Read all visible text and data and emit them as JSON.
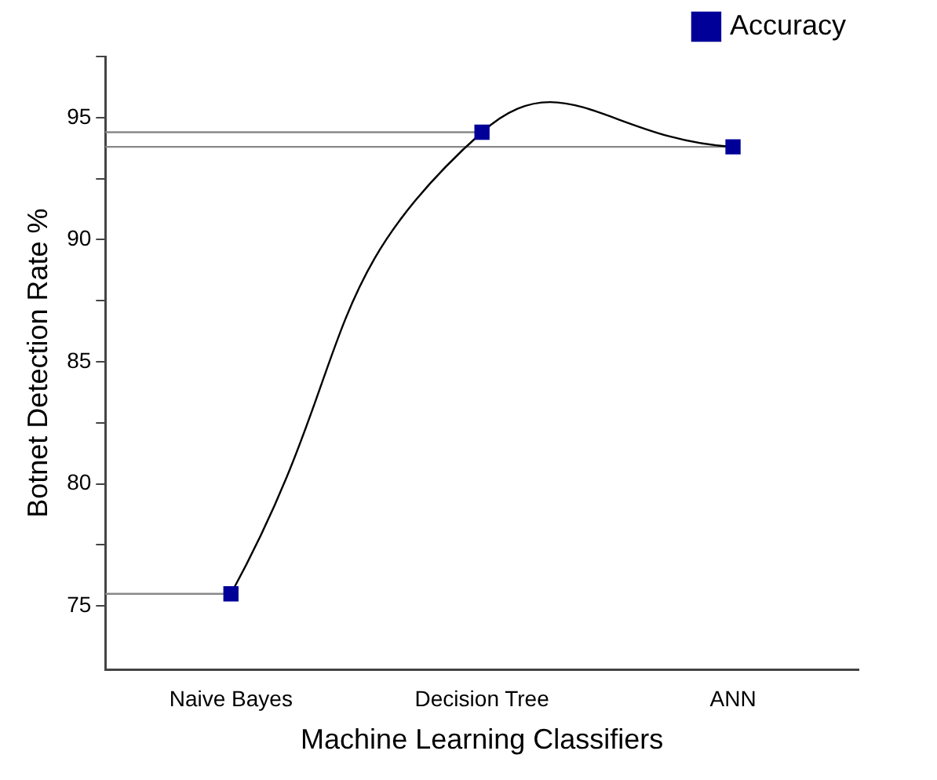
{
  "chart_data": {
    "type": "line",
    "xlabel": "Machine Learning Classifiers",
    "ylabel": "Botnet Detection Rate %",
    "categories": [
      "Naive Bayes",
      "Decision Tree",
      "ANN"
    ],
    "series": [
      {
        "name": "Accuracy",
        "color": "#000099",
        "values": [
          75.5,
          94.4,
          93.8
        ]
      }
    ],
    "ylim": [
      72.4,
      97.5
    ],
    "yticks": [
      75,
      {
        "value": 77.5,
        "label": null
      },
      80,
      {
        "value": 82.5,
        "label": null
      },
      85,
      {
        "value": 87.5,
        "label": null
      },
      90,
      {
        "value": 92.5,
        "label": null
      },
      95,
      {
        "value": 97.5,
        "label": null
      }
    ],
    "ref_lines": [
      {
        "axis": "y",
        "value": 94.4,
        "color": "#888888"
      },
      {
        "axis": "y",
        "value": 93.8,
        "color": "#888888"
      },
      {
        "axis": "y",
        "value": 75.5,
        "color": "#888888"
      }
    ],
    "marker": "square",
    "legend": "top right",
    "grid": false
  }
}
